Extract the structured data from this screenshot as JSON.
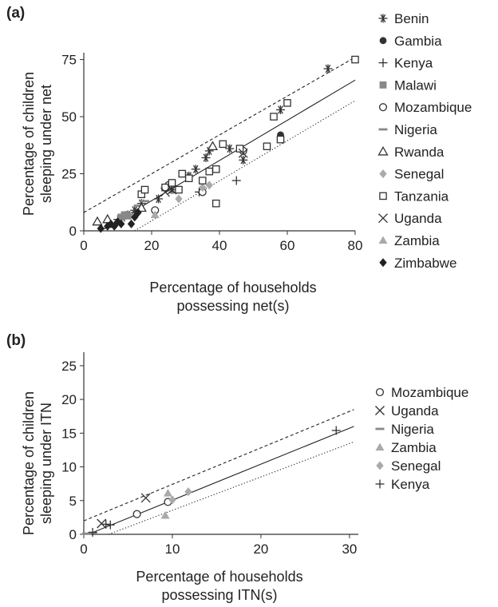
{
  "chart_data": [
    {
      "panel": "(a)",
      "type": "scatter",
      "xlabel": [
        "Percentage of households",
        "possessing net(s)"
      ],
      "ylabel": [
        "Percentage of children",
        "sleeping under net"
      ],
      "xlim": [
        0,
        80
      ],
      "ylim": [
        0,
        78
      ],
      "xticks": [
        "0",
        "20",
        "40",
        "60",
        "80"
      ],
      "yticks": [
        "0",
        "25",
        "50",
        "75"
      ],
      "grid": false,
      "legend_position": "right",
      "lines": [
        {
          "style": "solid",
          "x": [
            5,
            80
          ],
          "y": [
            0,
            66
          ]
        },
        {
          "style": "dashed",
          "x": [
            0,
            80
          ],
          "y": [
            8,
            76
          ]
        },
        {
          "style": "dotted",
          "x": [
            15,
            80
          ],
          "y": [
            0,
            57
          ]
        }
      ],
      "series": [
        {
          "name": "Benin",
          "marker": "asterisk",
          "color": "#333333",
          "points": [
            [
              13,
              7
            ],
            [
              15,
              9
            ],
            [
              17,
              12
            ],
            [
              22,
              14
            ],
            [
              26,
              18
            ],
            [
              31,
              24
            ],
            [
              33,
              27
            ],
            [
              36,
              32
            ],
            [
              37,
              35
            ],
            [
              43,
              36
            ],
            [
              47,
              31
            ],
            [
              58,
              53
            ],
            [
              72,
              71
            ]
          ]
        },
        {
          "name": "Gambia",
          "marker": "circle-filled",
          "color": "#333333",
          "points": [
            [
              58,
              42
            ]
          ]
        },
        {
          "name": "Kenya",
          "marker": "plus",
          "color": "#333333",
          "points": [
            [
              10,
              5
            ],
            [
              12,
              6
            ],
            [
              34,
              17
            ],
            [
              45,
              22
            ]
          ]
        },
        {
          "name": "Malawi",
          "marker": "square-filled",
          "color": "#888888",
          "points": [
            [
              11,
              6
            ],
            [
              12,
              7
            ],
            [
              13,
              6.5
            ]
          ]
        },
        {
          "name": "Mozambique",
          "marker": "circle-open",
          "color": "#333333",
          "points": [
            [
              21,
              9
            ],
            [
              25,
              20
            ],
            [
              35,
              17
            ],
            [
              47,
              35
            ]
          ]
        },
        {
          "name": "Nigeria",
          "marker": "dash",
          "color": "#888888",
          "points": [
            [
              16,
              11
            ],
            [
              18,
              13
            ]
          ]
        },
        {
          "name": "Rwanda",
          "marker": "triangle-open",
          "color": "#333333",
          "points": [
            [
              4,
              4
            ],
            [
              7,
              5
            ],
            [
              17,
              10
            ],
            [
              38,
              37
            ]
          ]
        },
        {
          "name": "Senegal",
          "marker": "diamond-filled",
          "color": "#aaaaaa",
          "points": [
            [
              28,
              14
            ],
            [
              35,
              19
            ],
            [
              37,
              20
            ]
          ]
        },
        {
          "name": "Tanzania",
          "marker": "square-open",
          "color": "#333333",
          "points": [
            [
              17,
              16
            ],
            [
              18,
              18
            ],
            [
              24,
              19
            ],
            [
              26,
              21
            ],
            [
              28,
              18
            ],
            [
              29,
              25
            ],
            [
              31,
              23
            ],
            [
              35,
              22
            ],
            [
              37,
              26
            ],
            [
              39,
              27
            ],
            [
              39,
              12
            ],
            [
              41,
              38
            ],
            [
              46,
              36
            ],
            [
              54,
              37
            ],
            [
              56,
              50
            ],
            [
              58,
              40
            ],
            [
              60,
              56
            ],
            [
              80,
              75
            ]
          ]
        },
        {
          "name": "Uganda",
          "marker": "x",
          "color": "#333333",
          "points": [
            [
              24,
              17
            ],
            [
              26,
              18
            ],
            [
              47,
              34
            ]
          ]
        },
        {
          "name": "Zambia",
          "marker": "triangle-filled",
          "color": "#aaaaaa",
          "points": [
            [
              21,
              7
            ]
          ]
        },
        {
          "name": "Zimbabwe",
          "marker": "diamond-filled",
          "color": "#222222",
          "points": [
            [
              5,
              1
            ],
            [
              7,
              2
            ],
            [
              8,
              3
            ],
            [
              9,
              2
            ],
            [
              10,
              4
            ],
            [
              11,
              3
            ],
            [
              14,
              3
            ],
            [
              15,
              6
            ],
            [
              16,
              8
            ]
          ]
        }
      ]
    },
    {
      "panel": "(b)",
      "type": "scatter",
      "xlabel": [
        "Percentage of households",
        "possessing ITN(s)"
      ],
      "ylabel": [
        "Percentage of children",
        "sleeping under ITN"
      ],
      "xlim": [
        0,
        31
      ],
      "ylim": [
        0,
        27
      ],
      "xticks": [
        "0",
        "10",
        "20",
        "30"
      ],
      "yticks": [
        "0",
        "5",
        "10",
        "15",
        "20",
        "25"
      ],
      "grid": false,
      "legend_position": "right",
      "lines": [
        {
          "style": "solid",
          "x": [
            0.5,
            30.5
          ],
          "y": [
            0,
            16
          ]
        },
        {
          "style": "dashed",
          "x": [
            0,
            30.5
          ],
          "y": [
            2,
            18.5
          ]
        },
        {
          "style": "dotted",
          "x": [
            2.8,
            30.5
          ],
          "y": [
            0,
            13.7
          ]
        }
      ],
      "series": [
        {
          "name": "Mozambique",
          "marker": "circle-open",
          "color": "#333333",
          "points": [
            [
              6,
              3
            ],
            [
              9.5,
              4.8
            ]
          ]
        },
        {
          "name": "Uganda",
          "marker": "x",
          "color": "#333333",
          "points": [
            [
              2,
              1.6
            ],
            [
              7,
              5.4
            ]
          ]
        },
        {
          "name": "Nigeria",
          "marker": "dash",
          "color": "#888888",
          "points": [
            [
              0.3,
              0.1
            ],
            [
              1,
              0.2
            ]
          ]
        },
        {
          "name": "Zambia",
          "marker": "triangle-filled",
          "color": "#aaaaaa",
          "points": [
            [
              9.2,
              2.8
            ],
            [
              9.5,
              6.1
            ]
          ]
        },
        {
          "name": "Senegal",
          "marker": "diamond-filled",
          "color": "#aaaaaa",
          "points": [
            [
              10,
              5.1
            ],
            [
              11.8,
              6.3
            ]
          ]
        },
        {
          "name": "Kenya",
          "marker": "plus",
          "color": "#333333",
          "points": [
            [
              1,
              0.3
            ],
            [
              2.5,
              1.5
            ],
            [
              3,
              1.4
            ],
            [
              28.5,
              15.4
            ]
          ]
        }
      ]
    }
  ]
}
